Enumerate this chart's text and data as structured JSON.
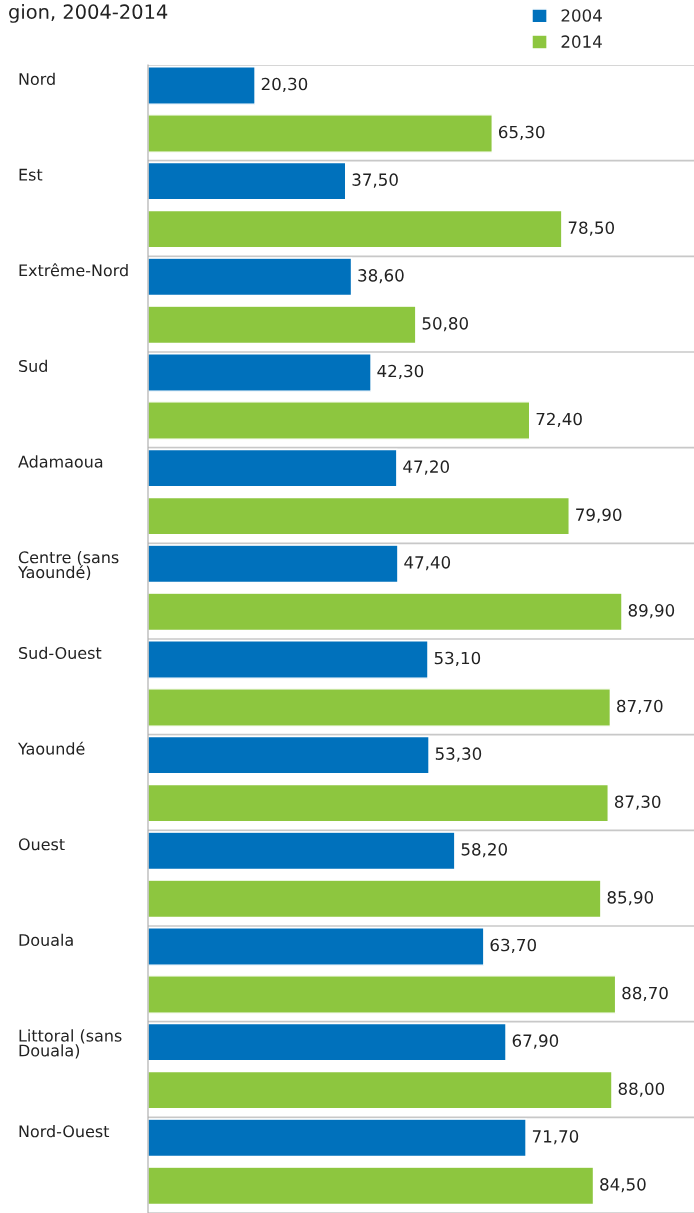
{
  "chart_data": {
    "type": "bar",
    "orientation": "horizontal",
    "title": "gion, 2004-2014",
    "categories": [
      "Nord",
      "Est",
      "Extrême-Nord",
      "Sud",
      "Adamaoua",
      "Centre (sans\nYaoundé)",
      "Sud-Ouest",
      "Yaoundé",
      "Ouest",
      "Douala",
      "Littoral (sans\nDouala)",
      "Nord-Ouest"
    ],
    "series": [
      {
        "name": "2004",
        "color": "#0071bc",
        "values": [
          20.3,
          37.5,
          38.6,
          42.3,
          47.2,
          47.4,
          53.1,
          53.3,
          58.2,
          63.7,
          67.9,
          71.7
        ],
        "value_labels": [
          "20,30",
          "37,50",
          "38,60",
          "42,30",
          "47,20",
          "47,40",
          "53,10",
          "53,30",
          "58,20",
          "63,70",
          "67,90",
          "71,70"
        ]
      },
      {
        "name": "2014",
        "color": "#8dc63f",
        "values": [
          65.3,
          78.5,
          50.8,
          72.4,
          79.9,
          89.9,
          87.7,
          87.3,
          85.9,
          88.7,
          88.0,
          84.5
        ],
        "value_labels": [
          "65,30",
          "78,50",
          "50,80",
          "72,40",
          "79,90",
          "89,90",
          "87,70",
          "87,30",
          "85,90",
          "88,70",
          "88,00",
          "84,50"
        ]
      }
    ],
    "grid": "y",
    "legend": "top right"
  }
}
